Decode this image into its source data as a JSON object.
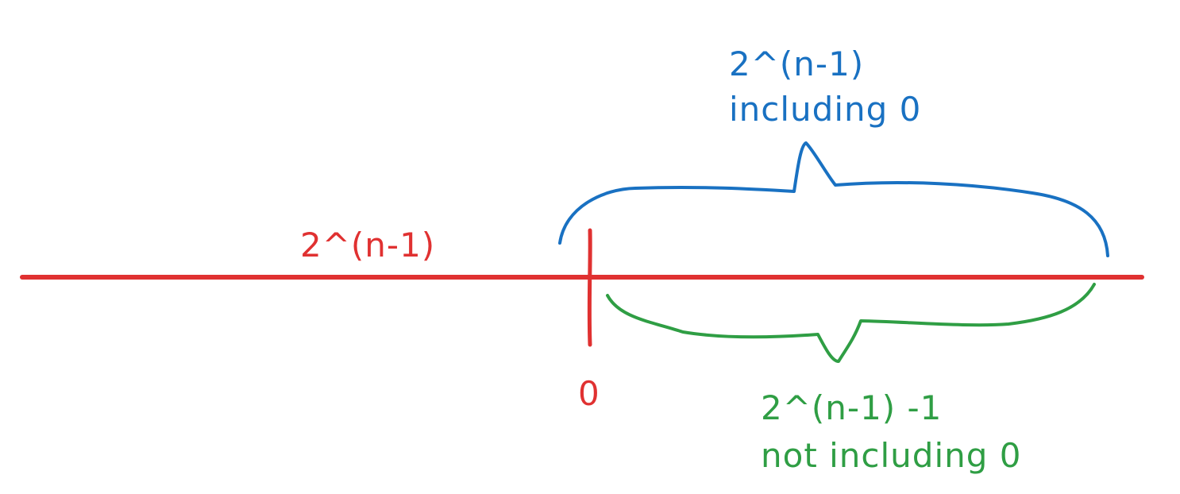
{
  "colors": {
    "red": "#e03131",
    "blue": "#1971c2",
    "green": "#2f9e44",
    "background": "#ffffff"
  },
  "labels": {
    "negative_count": "2^(n-1)",
    "zero": "0",
    "positive_count_line1": "2^(n-1)",
    "positive_count_line2": "including 0",
    "positive_nonzero_line1": "2^(n-1) -1",
    "positive_nonzero_line2": "not including 0"
  }
}
